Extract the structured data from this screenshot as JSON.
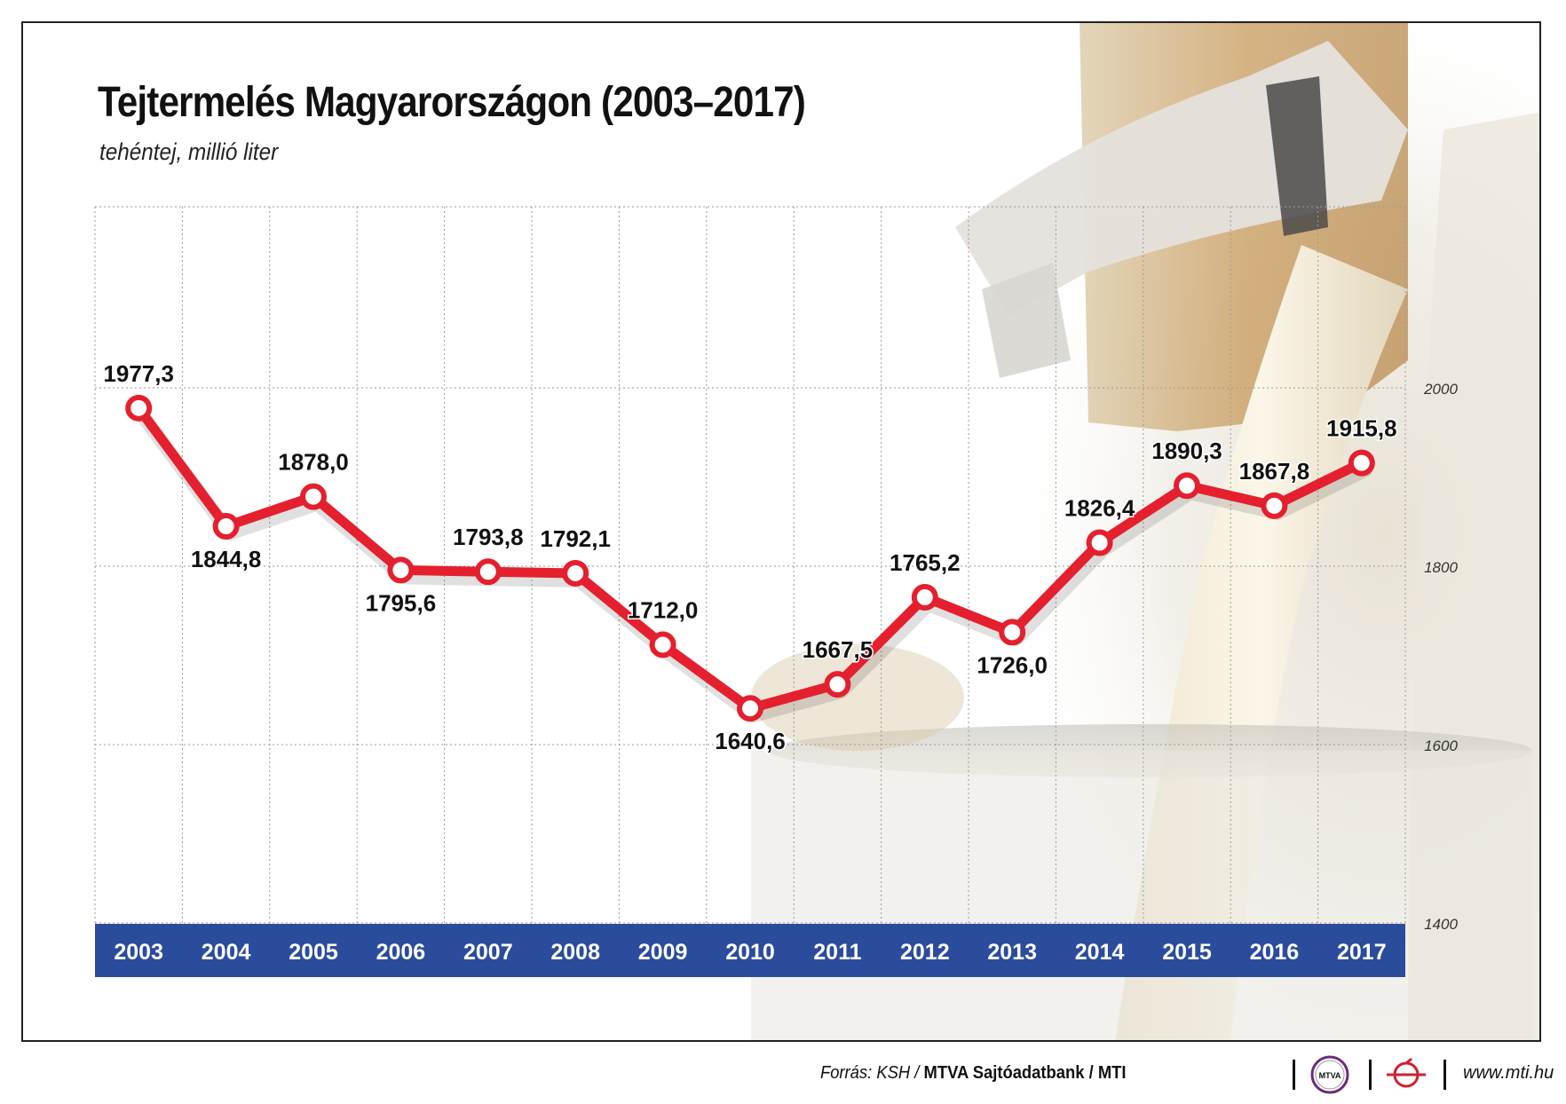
{
  "header": {
    "title": "Tejtermelés Magyarországon (2003–2017)",
    "subtitle": "tehéntej, millió liter"
  },
  "chart_data": {
    "type": "line",
    "title": "Tejtermelés Magyarországon (2003–2017)",
    "subtitle": "tehéntej, millió liter",
    "categories": [
      "2003",
      "2004",
      "2005",
      "2006",
      "2007",
      "2008",
      "2009",
      "2010",
      "2011",
      "2012",
      "2013",
      "2014",
      "2015",
      "2016",
      "2017"
    ],
    "series": [
      {
        "values": [
          1977.3,
          1844.8,
          1878.0,
          1795.6,
          1793.8,
          1792.1,
          1712.0,
          1640.6,
          1667.5,
          1765.2,
          1726.0,
          1826.4,
          1890.3,
          1867.8,
          1915.8
        ]
      }
    ],
    "data_labels": [
      "1977,3",
      "1844,8",
      "1878,0",
      "1795,6",
      "1793,8",
      "1792,1",
      "1712,0",
      "1640,6",
      "1667,5",
      "1765,2",
      "1726,0",
      "1826,4",
      "1890,3",
      "1867,8",
      "1915,8"
    ],
    "label_side": [
      "above",
      "below",
      "above",
      "below",
      "above",
      "above",
      "above",
      "below",
      "above",
      "above",
      "below",
      "above",
      "above",
      "above",
      "above"
    ],
    "y_ticks": [
      1400,
      1600,
      1800,
      2000
    ],
    "y_tick_labels": [
      "1400",
      "1600",
      "1800",
      "2000"
    ],
    "ylim": [
      1400,
      2000
    ],
    "y_axis_side": "right",
    "grid": true,
    "colors": {
      "line": "#e4202e",
      "axis_band": "#2b4c9c",
      "axis_text": "#ffffff",
      "grid": "#9a9a9a"
    }
  },
  "footer": {
    "source_prefix": "Forrás: KSH / ",
    "source_bold": "MTVA Sajtóadatbank / MTI",
    "logo_mtva": "MTVA",
    "website": "www.mti.hu"
  }
}
